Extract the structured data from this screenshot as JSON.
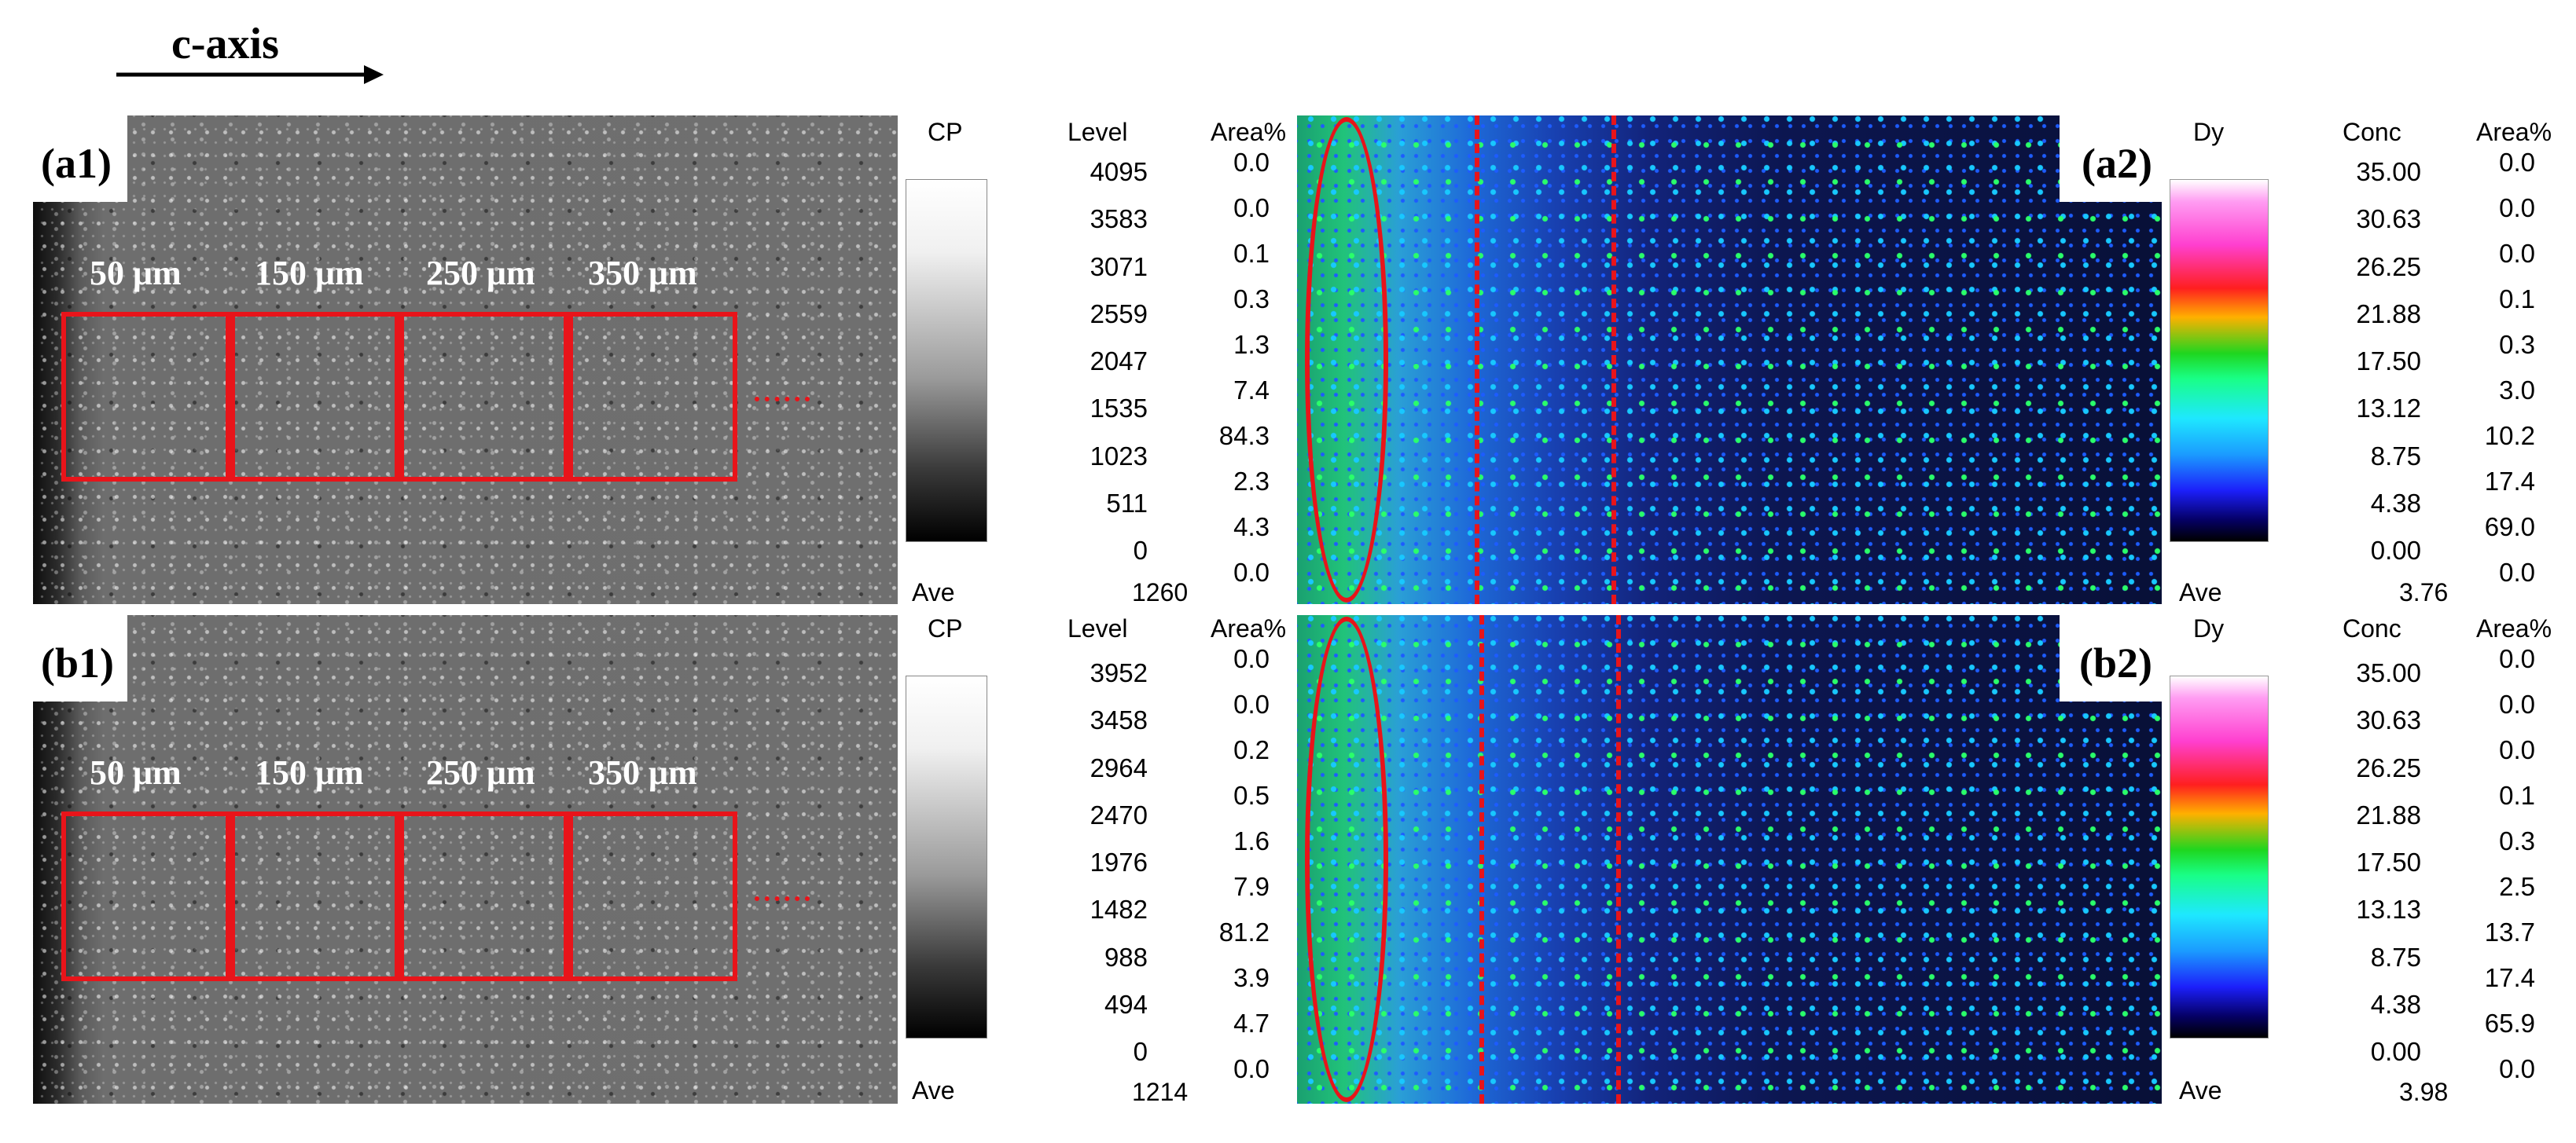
{
  "header": {
    "axis_label": "c-axis"
  },
  "panels": {
    "a1": {
      "label": "(a1)",
      "regions": [
        "50 μm",
        "150 μm",
        "250 μm",
        "350 μm"
      ],
      "scale": {
        "title": "CP",
        "level_header": "Level",
        "area_header": "Area%",
        "levels": [
          "4095",
          "3583",
          "3071",
          "2559",
          "2047",
          "1535",
          "1023",
          "511",
          "0"
        ],
        "areas": [
          "0.0",
          "0.0",
          "0.1",
          "0.3",
          "1.3",
          "7.4",
          "84.3",
          "2.3",
          "4.3",
          "0.0"
        ],
        "ave_label": "Ave",
        "ave_value": "1260"
      }
    },
    "b1": {
      "label": "(b1)",
      "regions": [
        "50 μm",
        "150 μm",
        "250 μm",
        "350 μm"
      ],
      "scale": {
        "title": "CP",
        "level_header": "Level",
        "area_header": "Area%",
        "levels": [
          "3952",
          "3458",
          "2964",
          "2470",
          "1976",
          "1482",
          "988",
          "494",
          "0"
        ],
        "areas": [
          "0.0",
          "0.0",
          "0.2",
          "0.5",
          "1.6",
          "7.9",
          "81.2",
          "3.9",
          "4.7",
          "0.0"
        ],
        "ave_label": "Ave",
        "ave_value": "1214"
      }
    },
    "a2": {
      "label": "(a2)",
      "scale": {
        "title": "Dy",
        "conc_header": "Conc",
        "area_header": "Area%",
        "concs": [
          "35.00",
          "30.63",
          "26.25",
          "21.88",
          "17.50",
          "13.12",
          "8.75",
          "4.38",
          "0.00"
        ],
        "areas": [
          "0.0",
          "0.0",
          "0.0",
          "0.1",
          "0.3",
          "3.0",
          "10.2",
          "17.4",
          "69.0",
          "0.0"
        ],
        "ave_label": "Ave",
        "ave_value": "3.76"
      }
    },
    "b2": {
      "label": "(b2)",
      "scale": {
        "title": "Dy",
        "conc_header": "Conc",
        "area_header": "Area%",
        "concs": [
          "35.00",
          "30.63",
          "26.25",
          "21.88",
          "17.50",
          "13.13",
          "8.75",
          "4.38",
          "0.00"
        ],
        "areas": [
          "0.0",
          "0.0",
          "0.0",
          "0.1",
          "0.3",
          "2.5",
          "13.7",
          "17.4",
          "65.9",
          "0.0"
        ],
        "ave_label": "Ave",
        "ave_value": "3.98"
      }
    }
  },
  "colors": {
    "annotation_red": "#e8141a"
  }
}
